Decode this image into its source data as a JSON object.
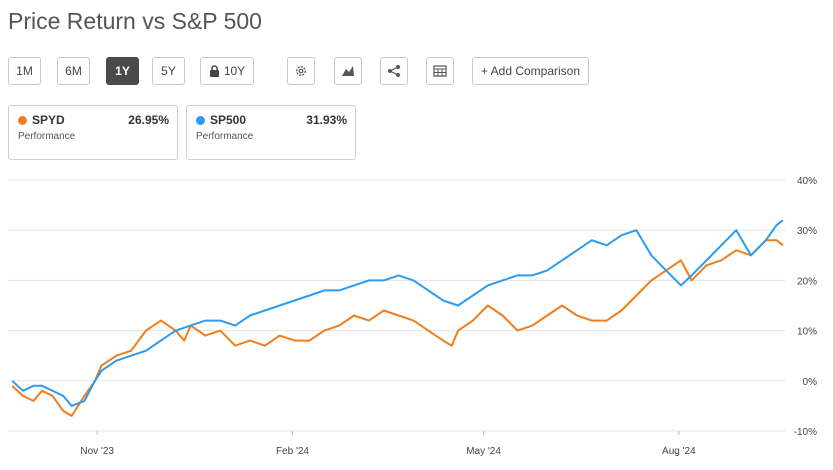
{
  "title": "Price Return vs S&P 500",
  "toolbar": {
    "periods": [
      "1M",
      "6M",
      "1Y",
      "5Y"
    ],
    "active_period": "1Y",
    "locked_period": "10Y",
    "settings_icon": "gear-icon",
    "chart_type_icon": "mountain-chart-icon",
    "share_icon": "share-icon",
    "table_icon": "table-icon",
    "add_comparison": "+ Add Comparison"
  },
  "cards": [
    {
      "name": "SPYD",
      "percent": "26.95%",
      "sub": "Performance",
      "color": "#f07d1e"
    },
    {
      "name": "SP500",
      "percent": "31.93%",
      "sub": "Performance",
      "color": "#2d9bf0"
    }
  ],
  "chart_data": {
    "type": "line",
    "y_tick_labels": [
      "40%",
      "30%",
      "20%",
      "10%",
      "0%",
      "-10%"
    ],
    "y_ticks": [
      40,
      30,
      20,
      10,
      0,
      -10
    ],
    "ylim": [
      -10,
      40
    ],
    "x_tick_labels": [
      "Nov '23",
      "Feb '24",
      "May '24",
      "Aug '24"
    ],
    "x_ticks": [
      "2023-11-01",
      "2024-02-01",
      "2024-05-01",
      "2024-08-01"
    ],
    "xlim": [
      "2023-09-20",
      "2024-09-20"
    ],
    "grid": "horizontal",
    "series": [
      {
        "name": "SPYD",
        "color": "#f07d1e",
        "x": [
          "2023-09-22",
          "2023-09-27",
          "2023-10-02",
          "2023-10-06",
          "2023-10-11",
          "2023-10-16",
          "2023-10-20",
          "2023-10-26",
          "2023-10-31",
          "2023-11-03",
          "2023-11-10",
          "2023-11-17",
          "2023-11-24",
          "2023-12-01",
          "2023-12-08",
          "2023-12-12",
          "2023-12-15",
          "2023-12-22",
          "2023-12-29",
          "2024-01-05",
          "2024-01-12",
          "2024-01-19",
          "2024-01-26",
          "2024-02-02",
          "2024-02-09",
          "2024-02-16",
          "2024-02-23",
          "2024-03-01",
          "2024-03-08",
          "2024-03-15",
          "2024-03-22",
          "2024-03-29",
          "2024-04-05",
          "2024-04-12",
          "2024-04-16",
          "2024-04-19",
          "2024-04-26",
          "2024-05-03",
          "2024-05-10",
          "2024-05-17",
          "2024-05-24",
          "2024-05-31",
          "2024-06-07",
          "2024-06-14",
          "2024-06-21",
          "2024-06-28",
          "2024-07-05",
          "2024-07-12",
          "2024-07-19",
          "2024-07-26",
          "2024-08-02",
          "2024-08-07",
          "2024-08-14",
          "2024-08-21",
          "2024-08-28",
          "2024-09-04",
          "2024-09-11",
          "2024-09-16",
          "2024-09-19"
        ],
        "y": [
          -1,
          -3,
          -4,
          -2,
          -3,
          -6,
          -7,
          -3,
          0,
          3,
          5,
          6,
          10,
          12,
          10,
          8,
          11,
          9,
          10,
          7,
          8,
          7,
          9,
          8,
          8,
          10,
          11,
          13,
          12,
          14,
          13,
          12,
          10,
          8,
          7,
          10,
          12,
          15,
          13,
          10,
          11,
          13,
          15,
          13,
          12,
          12,
          14,
          17,
          20,
          22,
          24,
          20,
          23,
          24,
          26,
          25,
          28,
          28,
          27
        ]
      },
      {
        "name": "SP500",
        "color": "#2d9bf0",
        "x": [
          "2023-09-22",
          "2023-09-27",
          "2023-10-02",
          "2023-10-06",
          "2023-10-11",
          "2023-10-16",
          "2023-10-20",
          "2023-10-26",
          "2023-10-31",
          "2023-11-03",
          "2023-11-10",
          "2023-11-17",
          "2023-11-24",
          "2023-12-01",
          "2023-12-08",
          "2023-12-15",
          "2023-12-22",
          "2023-12-29",
          "2024-01-05",
          "2024-01-12",
          "2024-01-19",
          "2024-01-26",
          "2024-02-02",
          "2024-02-09",
          "2024-02-16",
          "2024-02-23",
          "2024-03-01",
          "2024-03-08",
          "2024-03-15",
          "2024-03-22",
          "2024-03-29",
          "2024-04-05",
          "2024-04-12",
          "2024-04-19",
          "2024-04-26",
          "2024-05-03",
          "2024-05-10",
          "2024-05-17",
          "2024-05-24",
          "2024-05-31",
          "2024-06-07",
          "2024-06-14",
          "2024-06-21",
          "2024-06-28",
          "2024-07-05",
          "2024-07-12",
          "2024-07-19",
          "2024-07-26",
          "2024-08-02",
          "2024-08-07",
          "2024-08-14",
          "2024-08-21",
          "2024-08-28",
          "2024-09-04",
          "2024-09-11",
          "2024-09-16",
          "2024-09-19"
        ],
        "y": [
          0,
          -2,
          -1,
          -1,
          -2,
          -3,
          -5,
          -4,
          0,
          2,
          4,
          5,
          6,
          8,
          10,
          11,
          12,
          12,
          11,
          13,
          14,
          15,
          16,
          17,
          18,
          18,
          19,
          20,
          20,
          21,
          20,
          18,
          16,
          15,
          17,
          19,
          20,
          21,
          21,
          22,
          24,
          26,
          28,
          27,
          29,
          30,
          25,
          22,
          19,
          21,
          24,
          27,
          30,
          25,
          28,
          31,
          32
        ]
      }
    ]
  }
}
